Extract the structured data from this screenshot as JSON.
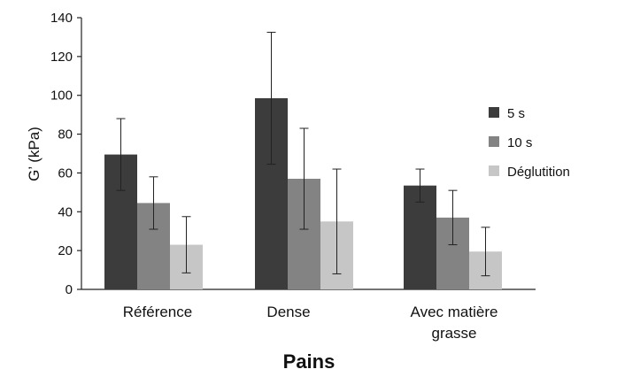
{
  "chart_data": {
    "type": "bar",
    "categories": [
      [
        "Référence"
      ],
      [
        "Dense"
      ],
      [
        "Avec matière",
        "grasse"
      ]
    ],
    "series": [
      {
        "name": "5 s",
        "color": "#3c3c3c",
        "values": [
          69.5,
          98.5,
          53.5
        ],
        "error": [
          18.5,
          34,
          8.5
        ]
      },
      {
        "name": "10 s",
        "color": "#838383",
        "values": [
          44.5,
          57,
          37
        ],
        "error": [
          13.5,
          26,
          14
        ]
      },
      {
        "name": "Déglutition",
        "color": "#c6c6c6",
        "values": [
          23,
          35,
          19.5
        ],
        "error": [
          14.5,
          27,
          12.5
        ]
      }
    ],
    "xlabel": "Pains",
    "ylabel": "G’ (kPa)",
    "ylim": [
      0,
      140
    ],
    "yticks": [
      0,
      20,
      40,
      60,
      80,
      100,
      120,
      140
    ],
    "legend_position": "right",
    "grid": false
  }
}
